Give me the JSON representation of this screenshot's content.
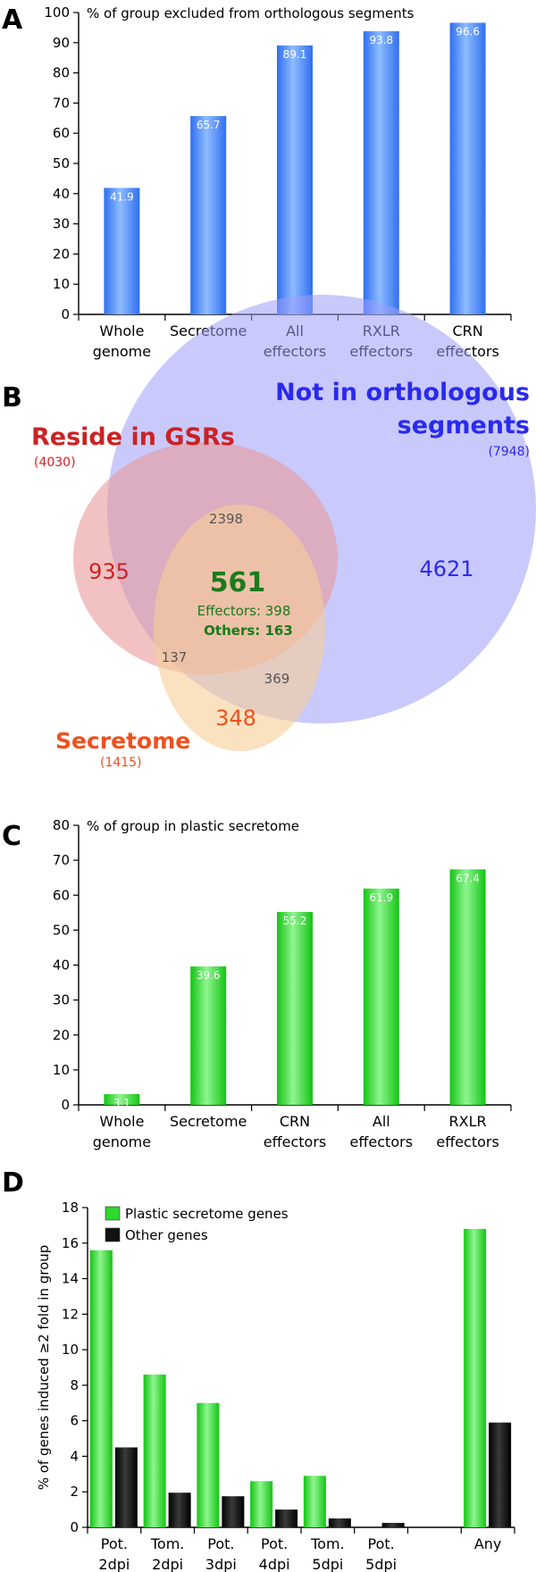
{
  "panels": {
    "a": "A",
    "b": "B",
    "c": "C",
    "d": "D"
  },
  "colors": {
    "blue_bar": "#4f8cff",
    "green_bar": "#2bd82b",
    "black_bar": "#111111",
    "gsr": "#d94b4b",
    "orthologous": "#3333dd",
    "secretome": "#f07a3a",
    "effectors_text": "#1b7a1b"
  },
  "chart_data": [
    {
      "id": "A",
      "type": "bar",
      "title": "% of group excluded from orthologous segments",
      "categories": [
        [
          "Whole",
          "genome"
        ],
        [
          "Secretome"
        ],
        [
          "All",
          "effectors"
        ],
        [
          "RXLR",
          "effectors"
        ],
        [
          "CRN",
          "effectors"
        ]
      ],
      "values": [
        41.9,
        65.7,
        89.1,
        93.8,
        96.6
      ],
      "value_labels": [
        "41.9",
        "65.7",
        "89.1",
        "93.8",
        "96.6"
      ],
      "ylim": [
        0,
        100
      ],
      "yticks": [
        0,
        10,
        20,
        30,
        40,
        50,
        60,
        70,
        80,
        90,
        100
      ],
      "grid": false
    },
    {
      "id": "C",
      "type": "bar",
      "title": "% of group in plastic secretome",
      "categories": [
        [
          "Whole",
          "genome"
        ],
        [
          "Secretome"
        ],
        [
          "CRN",
          "effectors"
        ],
        [
          "All",
          "effectors"
        ],
        [
          "RXLR",
          "effectors"
        ]
      ],
      "values": [
        3.1,
        39.6,
        55.2,
        61.9,
        67.4
      ],
      "value_labels": [
        "3.1",
        "39.6",
        "55.2",
        "61.9",
        "67.4"
      ],
      "ylim": [
        0,
        80
      ],
      "yticks": [
        0,
        10,
        20,
        30,
        40,
        50,
        60,
        70,
        80
      ],
      "grid": false
    },
    {
      "id": "D",
      "type": "bar",
      "ylabel": "% of genes induced ≥2 fold in group",
      "categories": [
        [
          "Pot.",
          "2dpi"
        ],
        [
          "Tom.",
          "2dpi"
        ],
        [
          "Pot.",
          "3dpi"
        ],
        [
          "Pot.",
          "4dpi"
        ],
        [
          "Tom.",
          "5dpi"
        ],
        [
          "Pot.",
          "5dpi"
        ],
        [
          ""
        ],
        [
          "Any"
        ]
      ],
      "series": [
        {
          "name": "Plastic secretome genes",
          "values": [
            15.6,
            8.6,
            7.0,
            2.6,
            2.9,
            0,
            null,
            16.8
          ]
        },
        {
          "name": "Other genes",
          "values": [
            4.5,
            1.95,
            1.75,
            1.0,
            0.5,
            0.25,
            null,
            5.9
          ]
        }
      ],
      "ylim": [
        0,
        18
      ],
      "yticks": [
        0,
        2,
        4,
        6,
        8,
        10,
        12,
        14,
        16,
        18
      ],
      "legend": "top-left",
      "grid": false
    },
    {
      "id": "B",
      "type": "venn",
      "sets": [
        {
          "key": "gsr",
          "label": "Reside in GSRs",
          "total": "(4030)"
        },
        {
          "key": "orthologous",
          "label_lines": [
            "Not in orthologous",
            "segments"
          ],
          "total": "(7948)"
        },
        {
          "key": "secretome",
          "label": "Secretome",
          "total": "(1415)"
        }
      ],
      "regions": {
        "gsr_only": "935",
        "orthologous_only": "4621",
        "secretome_only": "348",
        "gsr_orthologous": "2398",
        "gsr_secretome": "137",
        "orthologous_secretome": "369",
        "all_three": "561",
        "all_three_effectors": "Effectors: 398",
        "all_three_others": "Others: 163"
      }
    }
  ]
}
